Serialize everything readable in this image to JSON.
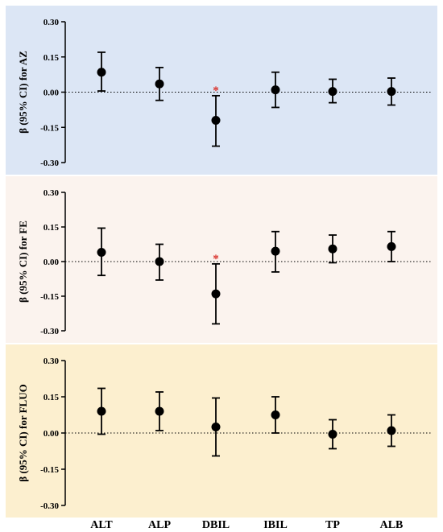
{
  "chart_data": {
    "type": "scatter",
    "categories": [
      "ALT",
      "ALP",
      "DBIL",
      "IBIL",
      "TP",
      "ALB"
    ],
    "yticks": [
      "0.30",
      "0.15",
      "0.00",
      "-0.15",
      "-0.30"
    ],
    "ylim": [
      -0.3,
      0.3
    ],
    "grid": false,
    "reference_line": 0,
    "panels": [
      {
        "ylabel": "β (95% CI) for AZ",
        "background": "#dce6f5",
        "points": [
          {
            "category": "ALT",
            "beta": 0.085,
            "lower": 0.005,
            "upper": 0.17,
            "sig": ""
          },
          {
            "category": "ALP",
            "beta": 0.035,
            "lower": -0.035,
            "upper": 0.105,
            "sig": ""
          },
          {
            "category": "DBIL",
            "beta": -0.12,
            "lower": -0.23,
            "upper": -0.015,
            "sig": "*"
          },
          {
            "category": "IBIL",
            "beta": 0.01,
            "lower": -0.065,
            "upper": 0.085,
            "sig": ""
          },
          {
            "category": "TP",
            "beta": 0.003,
            "lower": -0.045,
            "upper": 0.055,
            "sig": ""
          },
          {
            "category": "ALB",
            "beta": 0.003,
            "lower": -0.055,
            "upper": 0.06,
            "sig": ""
          }
        ]
      },
      {
        "ylabel": "β (95% CI) for FE",
        "background": "#fbf3ee",
        "points": [
          {
            "category": "ALT",
            "beta": 0.04,
            "lower": -0.06,
            "upper": 0.145,
            "sig": ""
          },
          {
            "category": "ALP",
            "beta": 0.0,
            "lower": -0.08,
            "upper": 0.075,
            "sig": ""
          },
          {
            "category": "DBIL",
            "beta": -0.14,
            "lower": -0.27,
            "upper": -0.01,
            "sig": "*"
          },
          {
            "category": "IBIL",
            "beta": 0.045,
            "lower": -0.045,
            "upper": 0.13,
            "sig": ""
          },
          {
            "category": "TP",
            "beta": 0.055,
            "lower": -0.005,
            "upper": 0.115,
            "sig": ""
          },
          {
            "category": "ALB",
            "beta": 0.065,
            "lower": 0.0,
            "upper": 0.13,
            "sig": ""
          }
        ]
      },
      {
        "ylabel": "β (95% CI) for FLUO",
        "background": "#fcefcf",
        "points": [
          {
            "category": "ALT",
            "beta": 0.09,
            "lower": -0.005,
            "upper": 0.185,
            "sig": ""
          },
          {
            "category": "ALP",
            "beta": 0.09,
            "lower": 0.01,
            "upper": 0.17,
            "sig": ""
          },
          {
            "category": "DBIL",
            "beta": 0.025,
            "lower": -0.095,
            "upper": 0.145,
            "sig": ""
          },
          {
            "category": "IBIL",
            "beta": 0.075,
            "lower": 0.0,
            "upper": 0.15,
            "sig": ""
          },
          {
            "category": "TP",
            "beta": -0.005,
            "lower": -0.065,
            "upper": 0.055,
            "sig": ""
          },
          {
            "category": "ALB",
            "beta": 0.01,
            "lower": -0.055,
            "upper": 0.075,
            "sig": ""
          }
        ]
      }
    ]
  }
}
